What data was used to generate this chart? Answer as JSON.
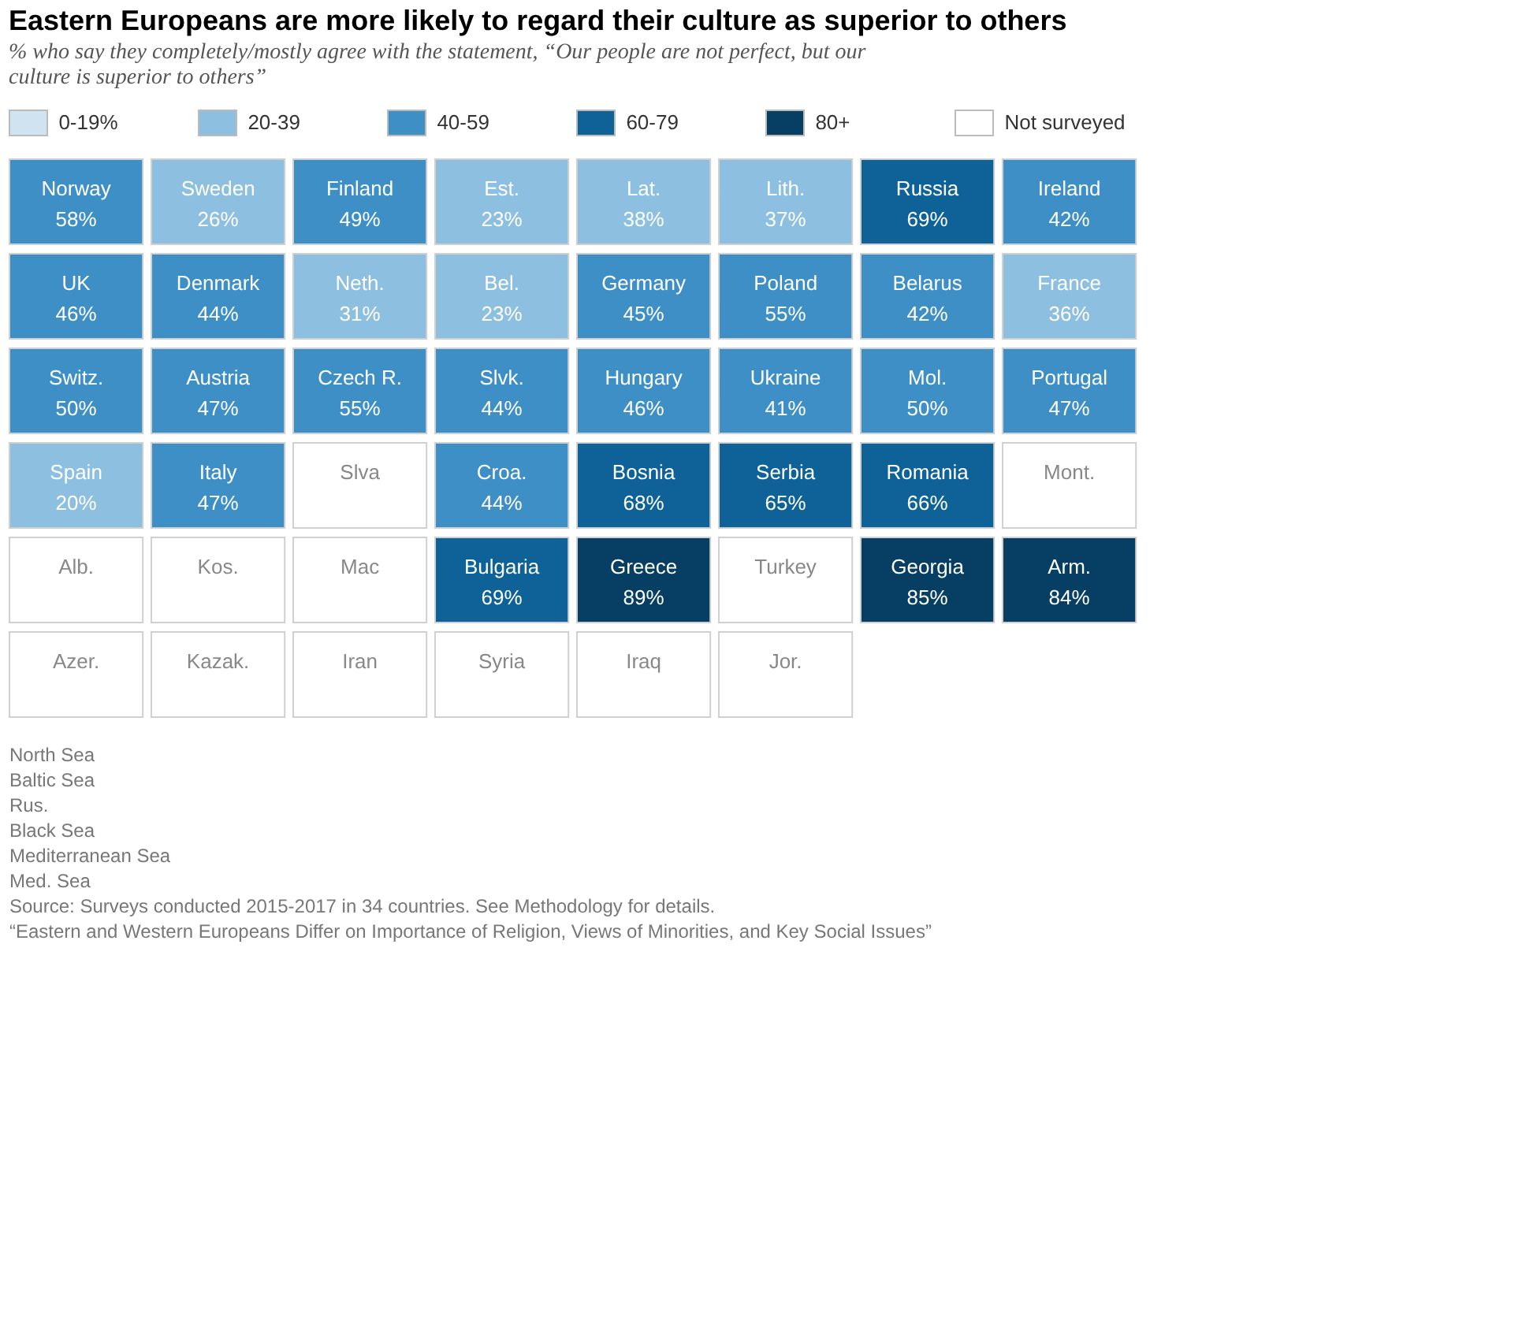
{
  "chart_data": {
    "type": "other",
    "title": "Eastern Europeans are more likely to regard their culture as superior to others",
    "subtitle": "% who say they completely/mostly agree with the statement, “Our people are not perfect, but our culture is superior to others”",
    "categories": [
      "Norway",
      "Sweden",
      "Finland",
      "Est.",
      "Lat.",
      "Lith.",
      "Russia",
      "Ireland",
      "UK",
      "Denmark",
      "Neth.",
      "Bel.",
      "Germany",
      "Poland",
      "Belarus",
      "France",
      "Switz.",
      "Austria",
      "Czech R.",
      "Slvk.",
      "Hungary",
      "Ukraine",
      "Mol.",
      "Portugal",
      "Spain",
      "Italy",
      "Slva",
      "Croa.",
      "Bosnia",
      "Serbia",
      "Romania",
      "Mont.",
      "Alb.",
      "Kos.",
      "Mac",
      "Bulgaria",
      "Greece",
      "Turkey",
      "Georgia",
      "Arm.",
      "Azer.",
      "Kazak.",
      "Iran",
      "Syria",
      "Iraq",
      "Jor."
    ],
    "series": [
      {
        "name": "0-19%",
        "color": "#cfe3f1",
        "values": [
          null,
          null,
          null,
          null,
          null,
          null,
          null,
          null,
          null,
          null,
          null,
          null,
          null,
          null,
          null,
          null,
          null,
          null,
          null,
          null,
          null,
          null,
          null,
          null,
          null,
          null,
          null,
          null,
          null,
          null,
          null,
          null,
          null,
          null,
          null,
          null,
          null,
          null,
          null,
          null,
          null,
          null,
          null,
          null,
          null,
          null
        ]
      },
      {
        "name": "20-39",
        "color": "#8dbfe0",
        "values": [
          null,
          26,
          null,
          23,
          38,
          37,
          null,
          null,
          null,
          null,
          31,
          23,
          null,
          null,
          null,
          36,
          null,
          null,
          null,
          null,
          null,
          null,
          null,
          null,
          20,
          null,
          null,
          null,
          null,
          null,
          null,
          null,
          null,
          null,
          null,
          null,
          null,
          null,
          null,
          null,
          null,
          null,
          null,
          null,
          null,
          null
        ],
        "value_labels": [
          null,
          "26%",
          null,
          "23%",
          "38%",
          "37%",
          null,
          null,
          null,
          null,
          "31%",
          "23%",
          null,
          null,
          null,
          "36%",
          null,
          null,
          null,
          null,
          null,
          null,
          null,
          null,
          "20%",
          null,
          null,
          null,
          null,
          null,
          null,
          null,
          null,
          null,
          null,
          null,
          null,
          null,
          null,
          null,
          null,
          null,
          null,
          null,
          null,
          null
        ]
      },
      {
        "name": "40-59",
        "color": "#3d8fc6",
        "values": [
          58,
          null,
          49,
          null,
          null,
          null,
          null,
          42,
          46,
          44,
          null,
          null,
          45,
          55,
          42,
          null,
          50,
          47,
          55,
          44,
          46,
          41,
          50,
          47,
          null,
          47,
          null,
          44,
          null,
          null,
          null,
          null,
          null,
          null,
          null,
          null,
          null,
          null,
          null,
          null,
          null,
          null,
          null,
          null,
          null,
          null
        ],
        "value_labels": [
          "58%",
          null,
          "49%",
          null,
          null,
          null,
          null,
          "42%",
          "46%",
          "44%",
          null,
          null,
          "45%",
          "55%",
          "42%",
          null,
          "50%",
          "47%",
          "55%",
          "44%",
          "46%",
          "41%",
          "50%",
          "47%",
          null,
          "47%",
          null,
          "44%",
          null,
          null,
          null,
          null,
          null,
          null,
          null,
          null,
          null,
          null,
          null,
          null,
          null,
          null,
          null,
          null,
          null,
          null
        ]
      },
      {
        "name": "60-79",
        "color": "#0f6297",
        "values": [
          null,
          null,
          null,
          null,
          null,
          null,
          69,
          null,
          null,
          null,
          null,
          null,
          null,
          null,
          null,
          null,
          null,
          null,
          null,
          null,
          null,
          null,
          null,
          null,
          null,
          null,
          null,
          null,
          68,
          65,
          66,
          null,
          null,
          null,
          null,
          69,
          null,
          null,
          null,
          null,
          null,
          null,
          null,
          null,
          null,
          null
        ],
        "value_labels": [
          null,
          null,
          null,
          null,
          null,
          null,
          "69%",
          null,
          null,
          null,
          null,
          null,
          null,
          null,
          null,
          null,
          null,
          null,
          null,
          null,
          null,
          null,
          null,
          null,
          null,
          null,
          null,
          null,
          "68%",
          "65%",
          "66%",
          null,
          null,
          null,
          null,
          "69%",
          null,
          null,
          null,
          null,
          null,
          null,
          null,
          null,
          null,
          null
        ]
      },
      {
        "name": "80+",
        "color": "#073e63",
        "values": [
          null,
          null,
          null,
          null,
          null,
          null,
          null,
          null,
          null,
          null,
          null,
          null,
          null,
          null,
          null,
          null,
          null,
          null,
          null,
          null,
          null,
          null,
          null,
          null,
          null,
          null,
          null,
          null,
          null,
          null,
          null,
          null,
          null,
          null,
          null,
          null,
          89,
          null,
          85,
          84,
          null,
          null,
          null,
          null,
          null,
          null
        ],
        "value_labels": [
          null,
          null,
          null,
          null,
          null,
          null,
          null,
          null,
          null,
          null,
          null,
          null,
          null,
          null,
          null,
          null,
          null,
          null,
          null,
          null,
          null,
          null,
          null,
          null,
          null,
          null,
          null,
          null,
          null,
          null,
          null,
          null,
          null,
          null,
          null,
          null,
          "89%",
          null,
          "85%",
          "84%",
          null,
          null,
          null,
          null,
          null,
          null
        ]
      },
      {
        "name": "Not surveyed",
        "color": "#ffffff",
        "values": [
          null,
          null,
          null,
          null,
          null,
          null,
          null,
          null,
          null,
          null,
          null,
          null,
          null,
          null,
          null,
          null,
          null,
          null,
          null,
          null,
          null,
          null,
          null,
          null,
          null,
          null,
          null,
          null,
          null,
          null,
          null,
          null,
          null,
          null,
          null,
          null,
          null,
          null,
          null,
          null,
          null,
          null,
          null,
          null,
          null,
          null
        ]
      }
    ],
    "legend": "top right",
    "annotations": [
      "North Sea",
      "Baltic Sea",
      "Rus.",
      "Black Sea",
      "Mediterranean Sea",
      "Med. Sea",
      "Source: Surveys conducted 2015-2017 in 34 countries. See Methodology for details.",
      "“Eastern and Western Europeans Differ on Importance of Religion, Views of Minorities, and Key Social Issues”"
    ]
  }
}
